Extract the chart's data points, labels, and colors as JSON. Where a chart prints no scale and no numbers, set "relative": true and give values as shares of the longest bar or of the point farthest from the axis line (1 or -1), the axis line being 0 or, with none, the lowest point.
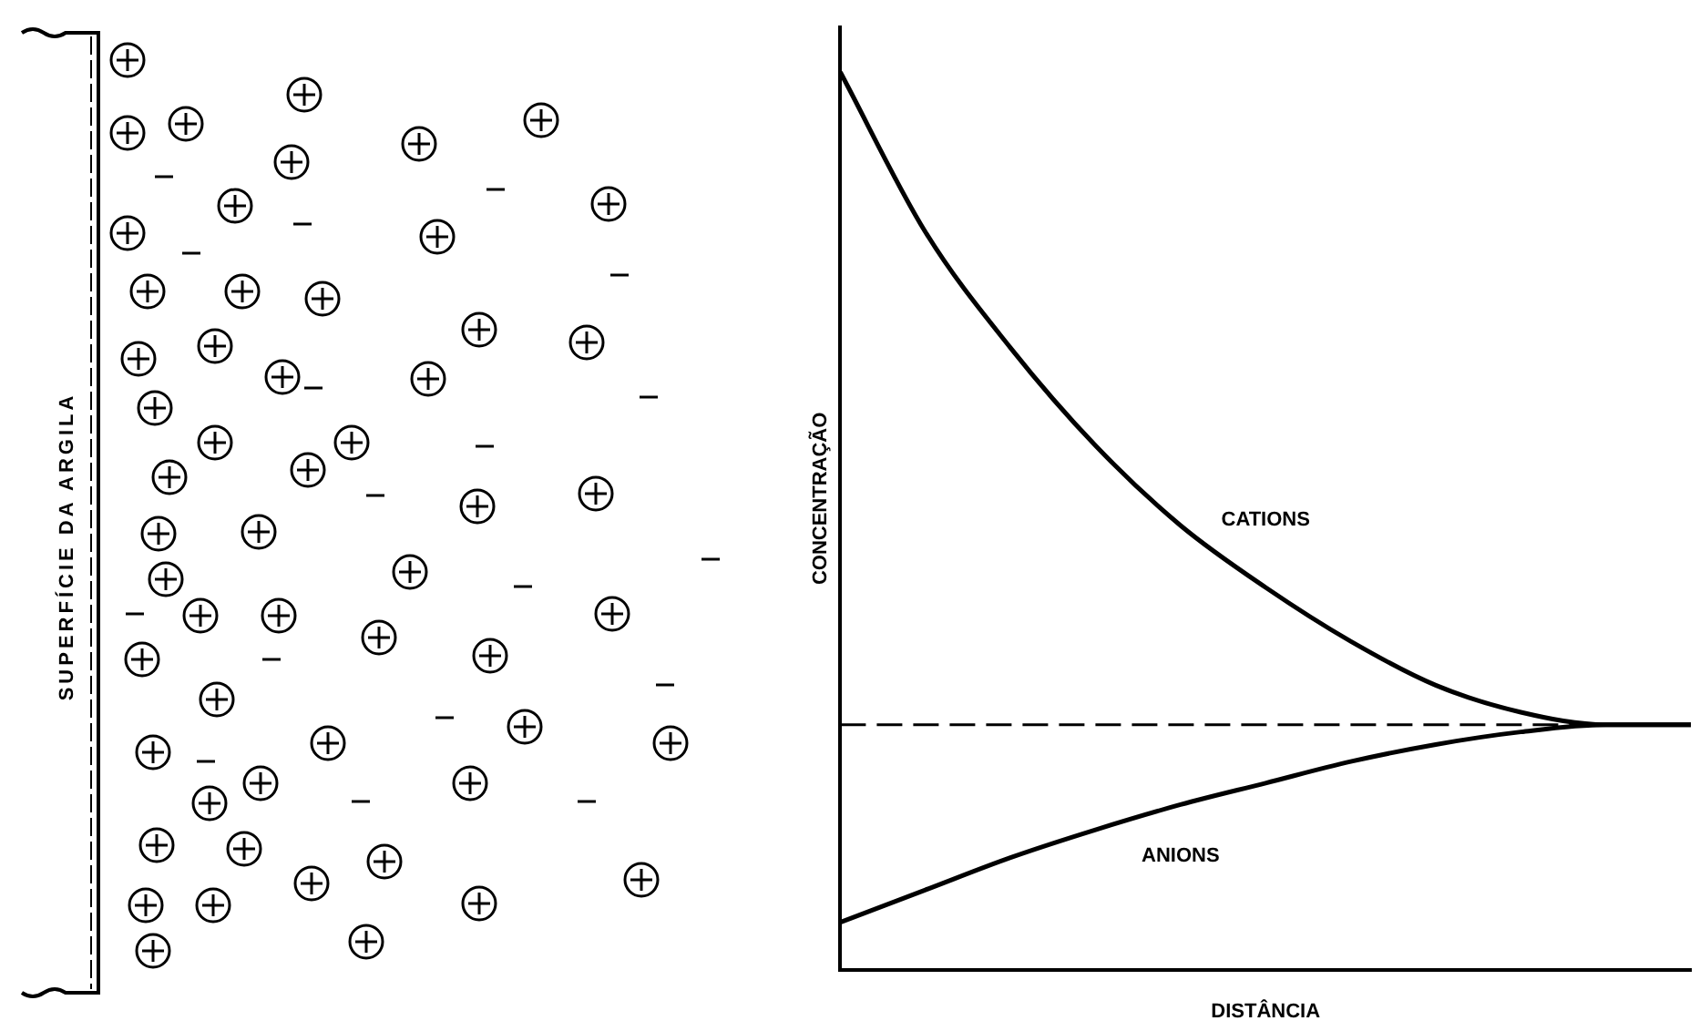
{
  "chart_data": {
    "type": "line",
    "relative": true,
    "xlabel": "DISTÂNCIA",
    "ylabel": "CONCENTRAÇÃO",
    "categories": [
      null,
      null,
      null,
      null,
      null,
      null,
      null,
      null,
      null,
      null,
      null
    ],
    "series": [
      {
        "name": "CATIONS",
        "color": "#000000",
        "values": [
          1,
          0.822,
          0.693,
          0.584,
          0.495,
          0.426,
          0.366,
          0.317,
          0.287,
          0.273,
          0.273
        ]
      },
      {
        "name": "ANIONS",
        "color": "#000000",
        "values": [
          0.053,
          0.089,
          0.125,
          0.156,
          0.184,
          0.208,
          0.232,
          0.251,
          0.265,
          0.273,
          0.273
        ]
      }
    ],
    "ref_lines": [
      {
        "axis": "y",
        "value": 0.273,
        "color": "#000000",
        "line_style": "dashed"
      }
    ],
    "annotations": [
      "SUPERFÍCIE DA ARGILA"
    ],
    "marker": "none",
    "line_style": "solid",
    "grid": false,
    "legend": false
  }
}
